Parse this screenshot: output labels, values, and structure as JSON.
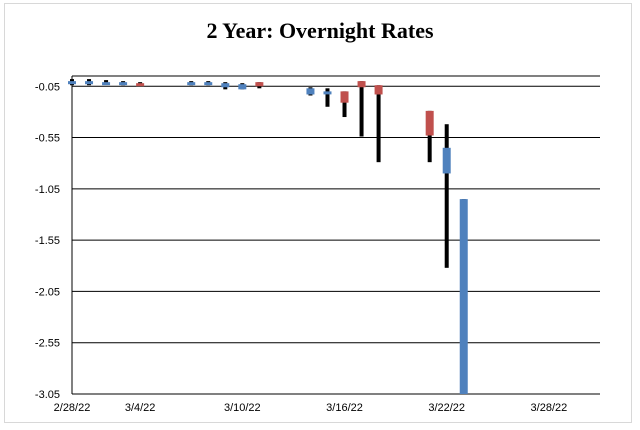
{
  "chart_data": {
    "type": "candlestick",
    "title": "2 Year:  Overnight Rates",
    "xlabel": "",
    "ylabel": "",
    "xlim": [
      "2/28/22",
      "3/31/22"
    ],
    "ylim": [
      -3.05,
      0.05
    ],
    "grid": true,
    "y_ticks": [
      "-0.05",
      "-0.55",
      "-1.05",
      "-1.55",
      "-2.05",
      "-2.55",
      "-3.05"
    ],
    "x_ticks": [
      "2/28/22",
      "3/4/22",
      "3/10/22",
      "3/16/22",
      "3/22/22",
      "3/28/22"
    ],
    "up_color": "#4f81bd",
    "down_color": "#c0504d",
    "wick_color": "#000000",
    "candles": [
      {
        "date": "2/28/22",
        "open": 0.0,
        "close": -0.03,
        "high": 0.02,
        "low": -0.04
      },
      {
        "date": "3/1/22",
        "open": 0.0,
        "close": -0.03,
        "high": 0.02,
        "low": -0.04
      },
      {
        "date": "3/2/22",
        "open": -0.01,
        "close": -0.02,
        "high": 0.01,
        "low": -0.03
      },
      {
        "date": "3/3/22",
        "open": -0.01,
        "close": -0.03,
        "high": 0.0,
        "low": -0.04
      },
      {
        "date": "3/4/22",
        "open": -0.03,
        "close": -0.02,
        "high": -0.01,
        "low": -0.05
      },
      {
        "date": "3/7/22",
        "open": -0.01,
        "close": -0.03,
        "high": 0.0,
        "low": -0.04
      },
      {
        "date": "3/8/22",
        "open": -0.01,
        "close": -0.03,
        "high": 0.0,
        "low": -0.04
      },
      {
        "date": "3/9/22",
        "open": -0.02,
        "close": -0.06,
        "high": -0.01,
        "low": -0.08
      },
      {
        "date": "3/10/22",
        "open": -0.03,
        "close": -0.08,
        "high": -0.02,
        "low": -0.08
      },
      {
        "date": "3/11/22",
        "open": -0.05,
        "close": -0.01,
        "high": -0.01,
        "low": -0.07
      },
      {
        "date": "3/14/22",
        "open": -0.07,
        "close": -0.13,
        "high": -0.06,
        "low": -0.14
      },
      {
        "date": "3/15/22",
        "open": -0.1,
        "close": -0.11,
        "high": -0.07,
        "low": -0.25
      },
      {
        "date": "3/16/22",
        "open": -0.21,
        "close": -0.1,
        "high": -0.1,
        "low": -0.35
      },
      {
        "date": "3/17/22",
        "open": -0.06,
        "close": 0.0,
        "high": 0.0,
        "low": -0.54
      },
      {
        "date": "3/18/22",
        "open": -0.13,
        "close": -0.04,
        "high": -0.04,
        "low": -0.79
      },
      {
        "date": "3/21/22",
        "open": -0.53,
        "close": -0.29,
        "high": -0.29,
        "low": -0.79
      },
      {
        "date": "3/22/22",
        "open": -0.65,
        "close": -0.9,
        "high": -0.42,
        "low": -1.82
      },
      {
        "date": "3/23/22",
        "open": -1.15,
        "close": -3.05,
        "high": -1.15,
        "low": -3.05
      }
    ]
  }
}
